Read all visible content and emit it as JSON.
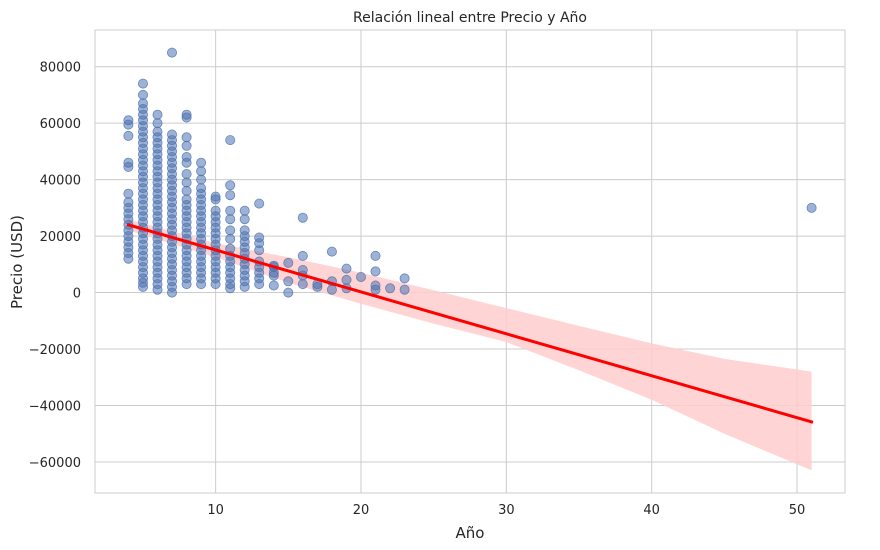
{
  "chart_data": {
    "type": "scatter",
    "title": "Relación lineal entre Precio y Año",
    "xlabel": "Año",
    "ylabel": "Precio (USD)",
    "xlim": [
      1.7,
      53.3
    ],
    "ylim": [
      -71000,
      93000
    ],
    "xticks": [
      10,
      20,
      30,
      40,
      50
    ],
    "yticks": [
      -60000,
      -40000,
      -20000,
      0,
      20000,
      40000,
      60000,
      80000
    ],
    "grid": true,
    "colors": {
      "points": "#4c72b0",
      "regression_line": "#ff0000",
      "confidence_band": "#ffcccc",
      "grid": "#cccccc",
      "spine": "#cccccc"
    },
    "regression": {
      "x": [
        4,
        51
      ],
      "y": [
        24000,
        -45800
      ]
    },
    "confidence_band": {
      "x": [
        4,
        10,
        15,
        20,
        25,
        30,
        35,
        40,
        45,
        51
      ],
      "upper": [
        26000,
        17500,
        12500,
        7000,
        800,
        -5500,
        -11800,
        -18000,
        -23500,
        -28000
      ],
      "lower": [
        22000,
        12500,
        3500,
        -4000,
        -11000,
        -17500,
        -27500,
        -38000,
        -50000,
        -63000
      ]
    },
    "points": [
      [
        4,
        12000
      ],
      [
        4,
        14000
      ],
      [
        4,
        16000
      ],
      [
        4,
        18000
      ],
      [
        4,
        20000
      ],
      [
        4,
        22000
      ],
      [
        4,
        24000
      ],
      [
        4,
        26000
      ],
      [
        4,
        28000
      ],
      [
        4,
        30000
      ],
      [
        4,
        32000
      ],
      [
        4,
        35000
      ],
      [
        4,
        44500
      ],
      [
        4,
        46000
      ],
      [
        4,
        55500
      ],
      [
        4,
        59500
      ],
      [
        4,
        61000
      ],
      [
        5,
        2000
      ],
      [
        5,
        3500
      ],
      [
        5,
        5000
      ],
      [
        5,
        7000
      ],
      [
        5,
        9000
      ],
      [
        5,
        11000
      ],
      [
        5,
        13000
      ],
      [
        5,
        15000
      ],
      [
        5,
        17000
      ],
      [
        5,
        19000
      ],
      [
        5,
        21000
      ],
      [
        5,
        23000
      ],
      [
        5,
        25000
      ],
      [
        5,
        27000
      ],
      [
        5,
        29000
      ],
      [
        5,
        31000
      ],
      [
        5,
        33000
      ],
      [
        5,
        35000
      ],
      [
        5,
        37000
      ],
      [
        5,
        39000
      ],
      [
        5,
        41000
      ],
      [
        5,
        43000
      ],
      [
        5,
        45000
      ],
      [
        5,
        47000
      ],
      [
        5,
        49000
      ],
      [
        5,
        51000
      ],
      [
        5,
        53000
      ],
      [
        5,
        55000
      ],
      [
        5,
        57000
      ],
      [
        5,
        59000
      ],
      [
        5,
        61000
      ],
      [
        5,
        63000
      ],
      [
        5,
        65000
      ],
      [
        5,
        67000
      ],
      [
        5,
        70000
      ],
      [
        5,
        74000
      ],
      [
        6,
        1000
      ],
      [
        6,
        3000
      ],
      [
        6,
        5000
      ],
      [
        6,
        7000
      ],
      [
        6,
        9000
      ],
      [
        6,
        11000
      ],
      [
        6,
        13000
      ],
      [
        6,
        15000
      ],
      [
        6,
        17000
      ],
      [
        6,
        19000
      ],
      [
        6,
        21000
      ],
      [
        6,
        23000
      ],
      [
        6,
        25000
      ],
      [
        6,
        27000
      ],
      [
        6,
        29000
      ],
      [
        6,
        31000
      ],
      [
        6,
        33000
      ],
      [
        6,
        35000
      ],
      [
        6,
        37000
      ],
      [
        6,
        39000
      ],
      [
        6,
        41000
      ],
      [
        6,
        43000
      ],
      [
        6,
        45000
      ],
      [
        6,
        47000
      ],
      [
        6,
        49000
      ],
      [
        6,
        51000
      ],
      [
        6,
        53000
      ],
      [
        6,
        55000
      ],
      [
        6,
        57000
      ],
      [
        6,
        60000
      ],
      [
        6,
        63000
      ],
      [
        7,
        0
      ],
      [
        7,
        2000
      ],
      [
        7,
        4000
      ],
      [
        7,
        6000
      ],
      [
        7,
        8000
      ],
      [
        7,
        10000
      ],
      [
        7,
        12000
      ],
      [
        7,
        14000
      ],
      [
        7,
        16000
      ],
      [
        7,
        18000
      ],
      [
        7,
        20000
      ],
      [
        7,
        22000
      ],
      [
        7,
        24000
      ],
      [
        7,
        26000
      ],
      [
        7,
        28000
      ],
      [
        7,
        30000
      ],
      [
        7,
        32000
      ],
      [
        7,
        34000
      ],
      [
        7,
        36000
      ],
      [
        7,
        38000
      ],
      [
        7,
        40000
      ],
      [
        7,
        42000
      ],
      [
        7,
        44000
      ],
      [
        7,
        46000
      ],
      [
        7,
        48000
      ],
      [
        7,
        50000
      ],
      [
        7,
        52000
      ],
      [
        7,
        54000
      ],
      [
        7,
        56000
      ],
      [
        7,
        85000
      ],
      [
        8,
        3000
      ],
      [
        8,
        5000
      ],
      [
        8,
        7000
      ],
      [
        8,
        9000
      ],
      [
        8,
        11000
      ],
      [
        8,
        13000
      ],
      [
        8,
        15000
      ],
      [
        8,
        17000
      ],
      [
        8,
        19000
      ],
      [
        8,
        21000
      ],
      [
        8,
        23000
      ],
      [
        8,
        25000
      ],
      [
        8,
        27000
      ],
      [
        8,
        29000
      ],
      [
        8,
        31000
      ],
      [
        8,
        33000
      ],
      [
        8,
        36000
      ],
      [
        8,
        39000
      ],
      [
        8,
        42000
      ],
      [
        8,
        46000
      ],
      [
        8,
        48000
      ],
      [
        8,
        52000
      ],
      [
        8,
        55000
      ],
      [
        8,
        62000
      ],
      [
        8,
        63000
      ],
      [
        9,
        3000
      ],
      [
        9,
        5000
      ],
      [
        9,
        7000
      ],
      [
        9,
        9000
      ],
      [
        9,
        11000
      ],
      [
        9,
        13000
      ],
      [
        9,
        15000
      ],
      [
        9,
        17000
      ],
      [
        9,
        19000
      ],
      [
        9,
        21000
      ],
      [
        9,
        23000
      ],
      [
        9,
        25000
      ],
      [
        9,
        27000
      ],
      [
        9,
        29000
      ],
      [
        9,
        31000
      ],
      [
        9,
        33000
      ],
      [
        9,
        35000
      ],
      [
        9,
        37000
      ],
      [
        9,
        40000
      ],
      [
        9,
        43000
      ],
      [
        9,
        46000
      ],
      [
        10,
        3000
      ],
      [
        10,
        5000
      ],
      [
        10,
        7000
      ],
      [
        10,
        9000
      ],
      [
        10,
        11000
      ],
      [
        10,
        13000
      ],
      [
        10,
        15000
      ],
      [
        10,
        17000
      ],
      [
        10,
        19000
      ],
      [
        10,
        21000
      ],
      [
        10,
        23000
      ],
      [
        10,
        25000
      ],
      [
        10,
        27000
      ],
      [
        10,
        29000
      ],
      [
        10,
        33000
      ],
      [
        10,
        34000
      ],
      [
        11,
        1500
      ],
      [
        11,
        3000
      ],
      [
        11,
        5000
      ],
      [
        11,
        7000
      ],
      [
        11,
        9000
      ],
      [
        11,
        11000
      ],
      [
        11,
        13000
      ],
      [
        11,
        15500
      ],
      [
        11,
        19000
      ],
      [
        11,
        22000
      ],
      [
        11,
        26000
      ],
      [
        11,
        29000
      ],
      [
        11,
        34500
      ],
      [
        11,
        38000
      ],
      [
        11,
        54000
      ],
      [
        12,
        2000
      ],
      [
        12,
        4000
      ],
      [
        12,
        6000
      ],
      [
        12,
        8000
      ],
      [
        12,
        10000
      ],
      [
        12,
        12000
      ],
      [
        12,
        14000
      ],
      [
        12,
        16000
      ],
      [
        12,
        18000
      ],
      [
        12,
        20000
      ],
      [
        12,
        22000
      ],
      [
        12,
        26000
      ],
      [
        12,
        29000
      ],
      [
        13,
        3000
      ],
      [
        13,
        5000
      ],
      [
        13,
        7000
      ],
      [
        13,
        9000
      ],
      [
        13,
        11000
      ],
      [
        13,
        15000
      ],
      [
        13,
        17500
      ],
      [
        13,
        19500
      ],
      [
        13,
        31500
      ],
      [
        14,
        2500
      ],
      [
        14,
        6000
      ],
      [
        14,
        7000
      ],
      [
        14,
        9000
      ],
      [
        14,
        9500
      ],
      [
        15,
        0
      ],
      [
        15,
        4000
      ],
      [
        15,
        10500
      ],
      [
        16,
        3000
      ],
      [
        16,
        6000
      ],
      [
        16,
        8000
      ],
      [
        16,
        13000
      ],
      [
        16,
        26500
      ],
      [
        17,
        2000
      ],
      [
        17,
        3000
      ],
      [
        18,
        1000
      ],
      [
        18,
        4000
      ],
      [
        18,
        14500
      ],
      [
        19,
        1500
      ],
      [
        19,
        4500
      ],
      [
        19,
        8500
      ],
      [
        20,
        5500
      ],
      [
        21,
        1000
      ],
      [
        21,
        2500
      ],
      [
        21,
        7500
      ],
      [
        21,
        13000
      ],
      [
        22,
        1500
      ],
      [
        23,
        1000
      ],
      [
        23,
        5000
      ],
      [
        51,
        30000
      ]
    ]
  }
}
